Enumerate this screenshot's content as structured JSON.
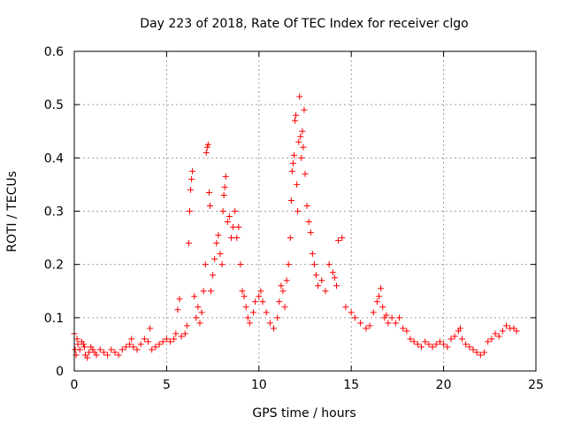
{
  "chart_data": {
    "type": "scatter",
    "title": "Day 223 of 2018, Rate Of TEC Index for receiver clgo",
    "xlabel": "GPS time / hours",
    "ylabel": "ROTI / TECUs",
    "xlim": [
      0,
      25
    ],
    "ylim": [
      0,
      0.6
    ],
    "xticks": [
      0,
      5,
      10,
      15,
      20,
      25
    ],
    "yticks": [
      0,
      0.1,
      0.2,
      0.3,
      0.4,
      0.5,
      0.6
    ],
    "xtick_labels": [
      "0",
      "5",
      "10",
      "15",
      "20",
      "25"
    ],
    "ytick_labels": [
      "0",
      "0.1",
      "0.2",
      "0.3",
      "0.4",
      "0.5",
      "0.6"
    ],
    "grid": true,
    "marker": "+",
    "marker_color": "#ff0000",
    "series": [
      {
        "values_note_free": true,
        "points": [
          [
            0.0,
            0.07
          ],
          [
            0.05,
            0.04
          ],
          [
            0.1,
            0.03
          ],
          [
            0.15,
            0.06
          ],
          [
            0.2,
            0.05
          ],
          [
            0.3,
            0.04
          ],
          [
            0.4,
            0.055
          ],
          [
            0.5,
            0.05
          ],
          [
            0.55,
            0.045
          ],
          [
            0.6,
            0.03
          ],
          [
            0.7,
            0.025
          ],
          [
            0.8,
            0.035
          ],
          [
            0.9,
            0.045
          ],
          [
            1.0,
            0.04
          ],
          [
            1.1,
            0.035
          ],
          [
            1.2,
            0.03
          ],
          [
            1.4,
            0.04
          ],
          [
            1.6,
            0.035
          ],
          [
            1.8,
            0.03
          ],
          [
            2.0,
            0.04
          ],
          [
            2.2,
            0.035
          ],
          [
            2.4,
            0.03
          ],
          [
            2.6,
            0.04
          ],
          [
            2.8,
            0.045
          ],
          [
            3.0,
            0.05
          ],
          [
            3.1,
            0.06
          ],
          [
            3.2,
            0.045
          ],
          [
            3.4,
            0.04
          ],
          [
            3.6,
            0.05
          ],
          [
            3.8,
            0.06
          ],
          [
            4.0,
            0.055
          ],
          [
            4.1,
            0.08
          ],
          [
            4.2,
            0.04
          ],
          [
            4.4,
            0.045
          ],
          [
            4.6,
            0.05
          ],
          [
            4.8,
            0.055
          ],
          [
            5.0,
            0.06
          ],
          [
            5.2,
            0.055
          ],
          [
            5.4,
            0.06
          ],
          [
            5.5,
            0.07
          ],
          [
            5.6,
            0.115
          ],
          [
            5.7,
            0.135
          ],
          [
            5.8,
            0.065
          ],
          [
            6.0,
            0.07
          ],
          [
            6.1,
            0.085
          ],
          [
            6.2,
            0.24
          ],
          [
            6.25,
            0.3
          ],
          [
            6.3,
            0.34
          ],
          [
            6.35,
            0.36
          ],
          [
            6.4,
            0.375
          ],
          [
            6.5,
            0.14
          ],
          [
            6.6,
            0.1
          ],
          [
            6.7,
            0.12
          ],
          [
            6.8,
            0.09
          ],
          [
            6.9,
            0.11
          ],
          [
            7.0,
            0.15
          ],
          [
            7.1,
            0.2
          ],
          [
            7.15,
            0.41
          ],
          [
            7.2,
            0.42
          ],
          [
            7.25,
            0.425
          ],
          [
            7.3,
            0.335
          ],
          [
            7.35,
            0.31
          ],
          [
            7.4,
            0.15
          ],
          [
            7.5,
            0.18
          ],
          [
            7.6,
            0.21
          ],
          [
            7.7,
            0.24
          ],
          [
            7.8,
            0.255
          ],
          [
            7.9,
            0.22
          ],
          [
            8.0,
            0.2
          ],
          [
            8.05,
            0.3
          ],
          [
            8.1,
            0.33
          ],
          [
            8.15,
            0.345
          ],
          [
            8.2,
            0.365
          ],
          [
            8.3,
            0.28
          ],
          [
            8.4,
            0.29
          ],
          [
            8.5,
            0.25
          ],
          [
            8.6,
            0.27
          ],
          [
            8.7,
            0.3
          ],
          [
            8.8,
            0.25
          ],
          [
            8.9,
            0.27
          ],
          [
            9.0,
            0.2
          ],
          [
            9.1,
            0.15
          ],
          [
            9.2,
            0.14
          ],
          [
            9.3,
            0.12
          ],
          [
            9.4,
            0.1
          ],
          [
            9.5,
            0.09
          ],
          [
            9.7,
            0.11
          ],
          [
            9.8,
            0.13
          ],
          [
            10.0,
            0.14
          ],
          [
            10.1,
            0.15
          ],
          [
            10.2,
            0.13
          ],
          [
            10.4,
            0.11
          ],
          [
            10.6,
            0.09
          ],
          [
            10.8,
            0.08
          ],
          [
            11.0,
            0.1
          ],
          [
            11.1,
            0.13
          ],
          [
            11.2,
            0.16
          ],
          [
            11.3,
            0.15
          ],
          [
            11.4,
            0.12
          ],
          [
            11.5,
            0.17
          ],
          [
            11.6,
            0.2
          ],
          [
            11.7,
            0.25
          ],
          [
            11.75,
            0.32
          ],
          [
            11.8,
            0.375
          ],
          [
            11.85,
            0.39
          ],
          [
            11.9,
            0.405
          ],
          [
            11.95,
            0.47
          ],
          [
            12.0,
            0.48
          ],
          [
            12.05,
            0.35
          ],
          [
            12.1,
            0.3
          ],
          [
            12.15,
            0.43
          ],
          [
            12.2,
            0.515
          ],
          [
            12.25,
            0.44
          ],
          [
            12.3,
            0.4
          ],
          [
            12.35,
            0.45
          ],
          [
            12.4,
            0.42
          ],
          [
            12.45,
            0.49
          ],
          [
            12.5,
            0.37
          ],
          [
            12.6,
            0.31
          ],
          [
            12.7,
            0.28
          ],
          [
            12.8,
            0.26
          ],
          [
            12.9,
            0.22
          ],
          [
            13.0,
            0.2
          ],
          [
            13.1,
            0.18
          ],
          [
            13.2,
            0.16
          ],
          [
            13.4,
            0.17
          ],
          [
            13.6,
            0.15
          ],
          [
            13.8,
            0.2
          ],
          [
            14.0,
            0.185
          ],
          [
            14.1,
            0.175
          ],
          [
            14.2,
            0.16
          ],
          [
            14.3,
            0.245
          ],
          [
            14.5,
            0.25
          ],
          [
            14.7,
            0.12
          ],
          [
            15.0,
            0.11
          ],
          [
            15.2,
            0.1
          ],
          [
            15.5,
            0.09
          ],
          [
            15.8,
            0.08
          ],
          [
            16.0,
            0.085
          ],
          [
            16.2,
            0.11
          ],
          [
            16.4,
            0.13
          ],
          [
            16.5,
            0.14
          ],
          [
            16.6,
            0.155
          ],
          [
            16.7,
            0.12
          ],
          [
            16.8,
            0.1
          ],
          [
            16.9,
            0.105
          ],
          [
            17.0,
            0.09
          ],
          [
            17.2,
            0.1
          ],
          [
            17.4,
            0.09
          ],
          [
            17.6,
            0.1
          ],
          [
            17.8,
            0.08
          ],
          [
            18.0,
            0.075
          ],
          [
            18.2,
            0.06
          ],
          [
            18.4,
            0.055
          ],
          [
            18.6,
            0.05
          ],
          [
            18.8,
            0.045
          ],
          [
            19.0,
            0.055
          ],
          [
            19.2,
            0.05
          ],
          [
            19.4,
            0.045
          ],
          [
            19.6,
            0.05
          ],
          [
            19.8,
            0.055
          ],
          [
            20.0,
            0.05
          ],
          [
            20.2,
            0.045
          ],
          [
            20.4,
            0.06
          ],
          [
            20.6,
            0.065
          ],
          [
            20.8,
            0.075
          ],
          [
            20.9,
            0.08
          ],
          [
            21.0,
            0.06
          ],
          [
            21.2,
            0.05
          ],
          [
            21.4,
            0.045
          ],
          [
            21.6,
            0.04
          ],
          [
            21.8,
            0.035
          ],
          [
            22.0,
            0.03
          ],
          [
            22.2,
            0.035
          ],
          [
            22.4,
            0.055
          ],
          [
            22.6,
            0.06
          ],
          [
            22.8,
            0.07
          ],
          [
            23.0,
            0.065
          ],
          [
            23.2,
            0.075
          ],
          [
            23.4,
            0.085
          ],
          [
            23.6,
            0.08
          ],
          [
            23.8,
            0.08
          ],
          [
            23.95,
            0.075
          ]
        ]
      }
    ]
  }
}
